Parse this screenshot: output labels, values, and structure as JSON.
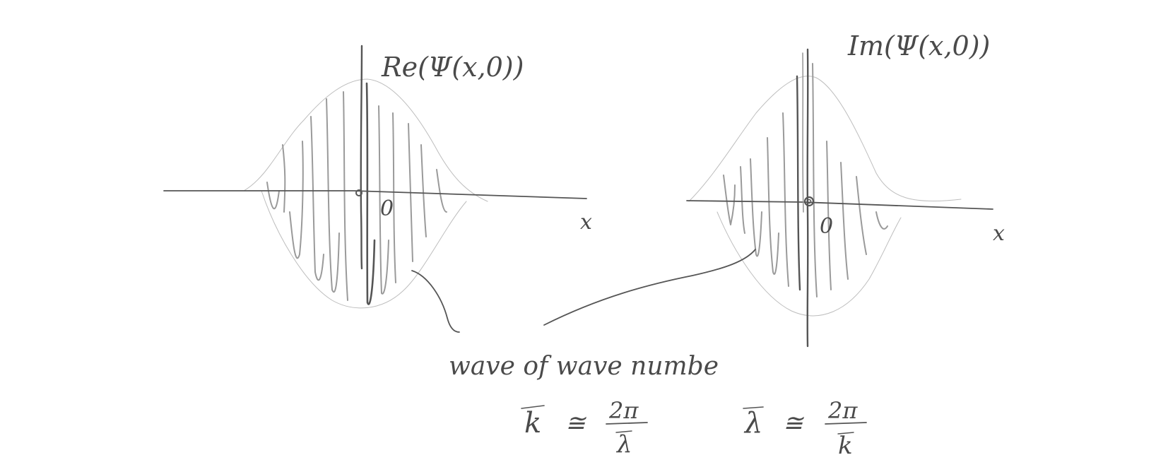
{
  "panels": [
    {
      "id": "re",
      "axis_title": "Re(Ψ(x,0))",
      "origin_label": "0",
      "x_label": "x"
    },
    {
      "id": "im",
      "axis_title": "Im(Ψ(x,0))",
      "origin_label": "0",
      "x_label": "x"
    }
  ],
  "caption": "wave of wave numbe",
  "formulas": {
    "k": {
      "lhs": "k",
      "rel": "≅",
      "num": "2π",
      "den": "λ"
    },
    "lambda": {
      "lhs": "λ",
      "rel": "≅",
      "num": "2π",
      "den": "k"
    }
  }
}
